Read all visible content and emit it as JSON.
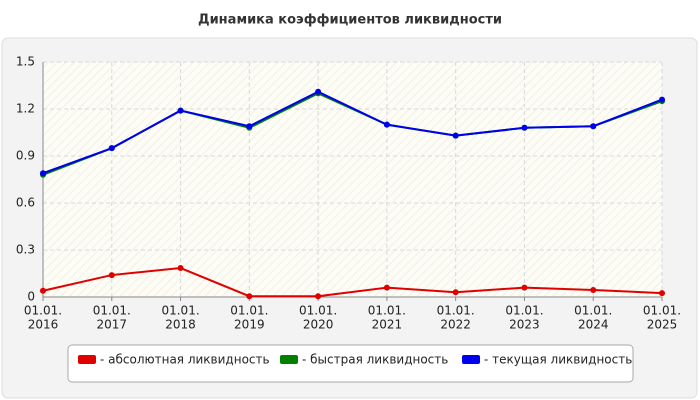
{
  "chart_data": {
    "type": "line",
    "title": "Динамика коэффициентов ликвидности",
    "categories": [
      [
        "01.01.",
        "2016"
      ],
      [
        "01.01.",
        "2017"
      ],
      [
        "01.01.",
        "2018"
      ],
      [
        "01.01.",
        "2019"
      ],
      [
        "01.01.",
        "2020"
      ],
      [
        "01.01.",
        "2021"
      ],
      [
        "01.01.",
        "2022"
      ],
      [
        "01.01.",
        "2023"
      ],
      [
        "01.01.",
        "2024"
      ],
      [
        "01.01.",
        "2025"
      ]
    ],
    "series": [
      {
        "name": "- абсолютная ликвидность",
        "color": "#e00000",
        "values": [
          0.04,
          0.14,
          0.185,
          0.005,
          0.005,
          0.06,
          0.03,
          0.06,
          0.045,
          0.025
        ]
      },
      {
        "name": "- быстрая ликвидность",
        "color": "#008000",
        "values": [
          0.78,
          0.95,
          1.19,
          1.08,
          1.3,
          1.1,
          1.03,
          1.08,
          1.09,
          1.25
        ]
      },
      {
        "name": "- текущая ликвидность",
        "color": "#0000ee",
        "values": [
          0.79,
          0.95,
          1.19,
          1.09,
          1.31,
          1.1,
          1.03,
          1.08,
          1.09,
          1.26
        ]
      }
    ],
    "ylim": [
      0,
      1.5
    ],
    "yticks": [
      0,
      0.3,
      0.6,
      0.9,
      1.2,
      1.5
    ],
    "grid": true,
    "legend": "bottom"
  }
}
